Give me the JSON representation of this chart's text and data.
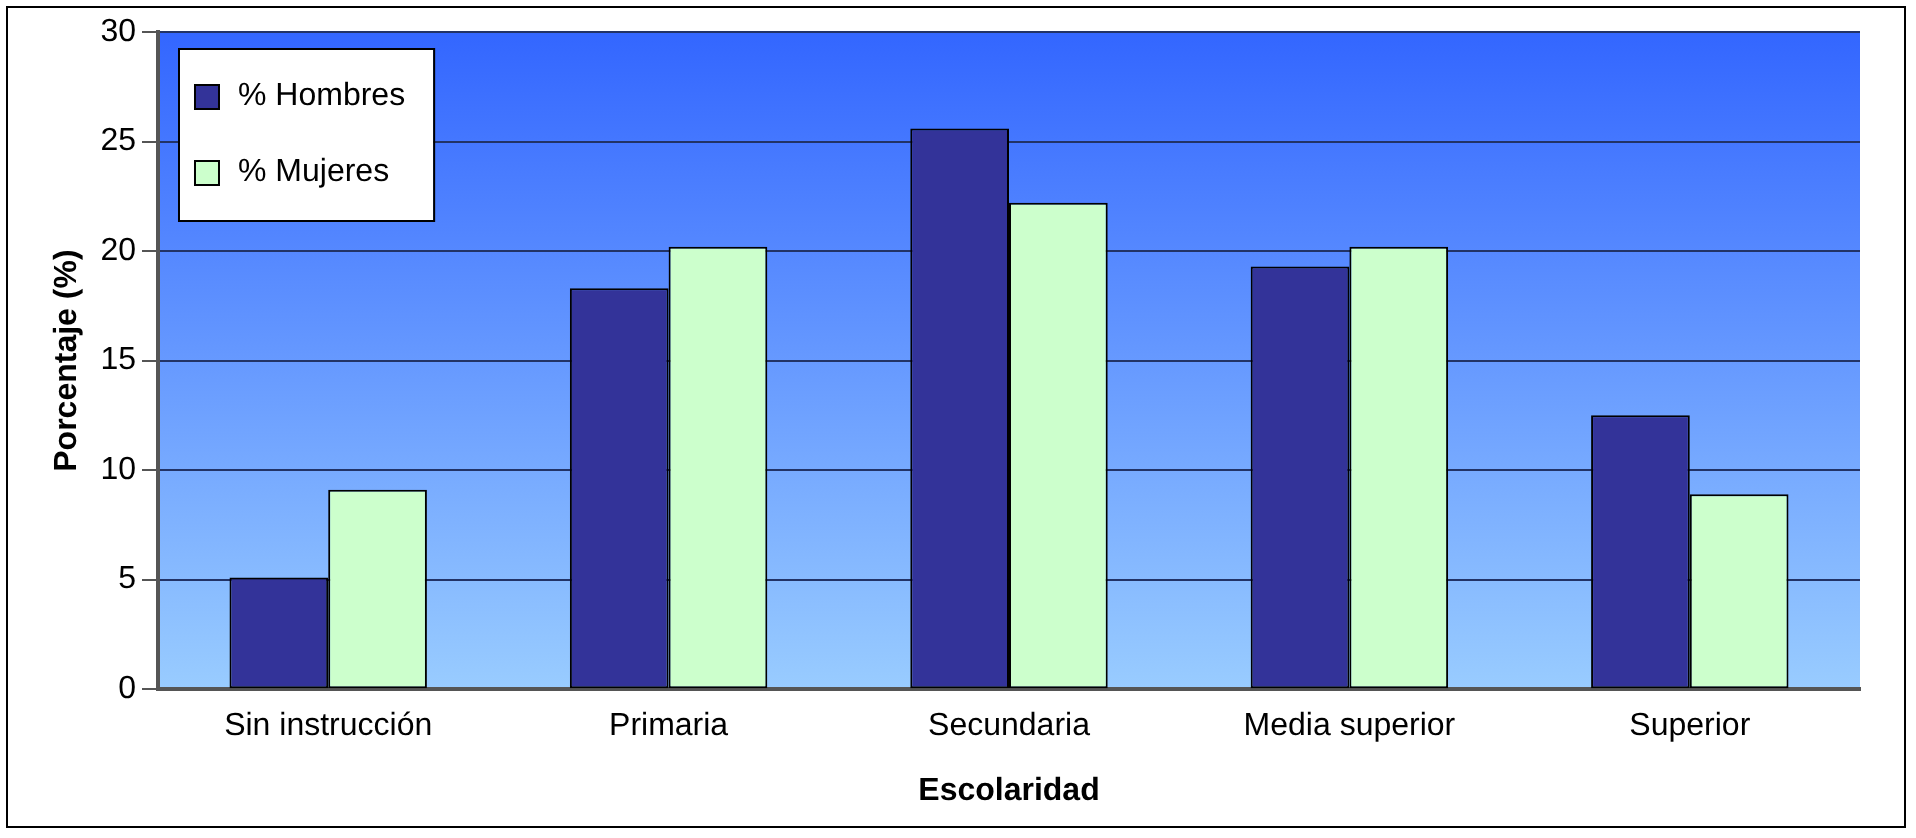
{
  "chart_data": {
    "type": "bar",
    "xlabel": "Escolaridad",
    "ylabel": "Porcentaje (%)",
    "categories": [
      "Sin instrucción",
      "Primaria",
      "Secundaria",
      "Media superior",
      "Superior"
    ],
    "series": [
      {
        "name": "% Hombres",
        "color": "#333399",
        "values": [
          5.1,
          18.3,
          25.6,
          19.3,
          12.5
        ]
      },
      {
        "name": "% Mujeres",
        "color": "#ccffcc",
        "values": [
          9.1,
          20.2,
          22.2,
          20.2,
          8.9
        ]
      }
    ],
    "ylim": [
      0,
      30
    ],
    "yticks": [
      0,
      5,
      10,
      15,
      20,
      25,
      30
    ],
    "grid": "y",
    "legend": "top left"
  }
}
